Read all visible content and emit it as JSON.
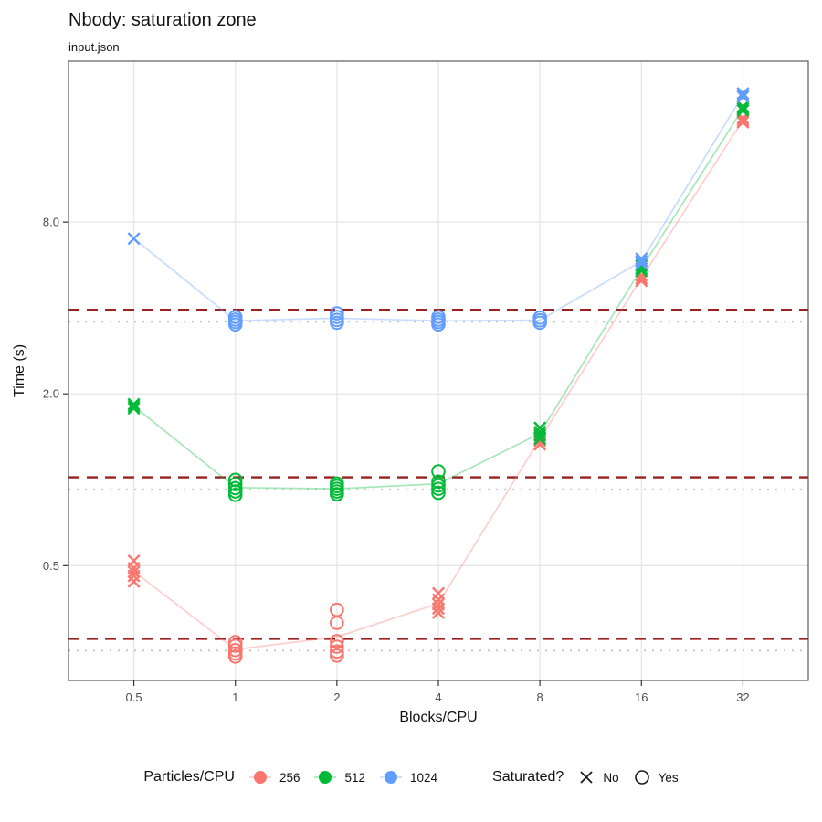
{
  "header": {
    "title": "Nbody: saturation zone",
    "subtitle": "input.json"
  },
  "axes": {
    "x_label": "Blocks/CPU",
    "y_label": "Time (s)"
  },
  "legend": {
    "color": {
      "title": "Particles/CPU",
      "items": [
        {
          "label": "256",
          "color": "#F8766D"
        },
        {
          "label": "512",
          "color": "#00BA38"
        },
        {
          "label": "1024",
          "color": "#619CFF"
        }
      ]
    },
    "shape": {
      "title": "Saturated?",
      "items": [
        {
          "label": "No",
          "shape": "x"
        },
        {
          "label": "Yes",
          "shape": "circle"
        }
      ]
    }
  },
  "chart_data": {
    "type": "scatter",
    "title": "Nbody: saturation zone",
    "subtitle": "input.json",
    "xlabel": "Blocks/CPU",
    "ylabel": "Time (s)",
    "x_scale": "log2",
    "y_scale": "log2",
    "grid": true,
    "legend_position": "bottom",
    "x_range": [
      0.32,
      50
    ],
    "y_range": [
      0.198,
      29.3
    ],
    "x_ticks": [
      {
        "v": 0.5,
        "label": "0.5"
      },
      {
        "v": 1,
        "label": "1"
      },
      {
        "v": 2,
        "label": "2"
      },
      {
        "v": 4,
        "label": "4"
      },
      {
        "v": 8,
        "label": "8"
      },
      {
        "v": 16,
        "label": "16"
      },
      {
        "v": 32,
        "label": "32"
      }
    ],
    "y_ticks": [
      {
        "v": 0.5,
        "label": "0.5"
      },
      {
        "v": 2.0,
        "label": "2.0"
      },
      {
        "v": 8.0,
        "label": "8.0"
      }
    ],
    "marker_shapes": {
      "saturated_true": "open-circle",
      "saturated_false": "x-cross"
    },
    "series": [
      {
        "name": "256",
        "color": "#F8766D",
        "points": [
          {
            "x": 0.5,
            "saturated": false,
            "times": [
              0.52,
              0.49,
              0.475,
              0.46,
              0.44
            ]
          },
          {
            "x": 1,
            "saturated": true,
            "times": [
              0.27,
              0.262,
              0.253,
              0.246,
              0.24
            ]
          },
          {
            "x": 2,
            "saturated": true,
            "times": [
              0.35,
              0.315,
              0.272,
              0.26,
              0.25,
              0.242
            ]
          },
          {
            "x": 4,
            "saturated": false,
            "times": [
              0.4,
              0.38,
              0.366,
              0.354,
              0.342
            ]
          },
          {
            "x": 8,
            "saturated": false,
            "times": [
              1.45,
              1.4,
              1.37,
              1.33
            ]
          },
          {
            "x": 16,
            "saturated": false,
            "times": [
              5.2,
              5.08,
              4.98
            ]
          },
          {
            "x": 32,
            "saturated": false,
            "times": [
              18.5,
              18.2,
              17.9
            ]
          }
        ]
      },
      {
        "name": "512",
        "color": "#00BA38",
        "points": [
          {
            "x": 0.5,
            "saturated": false,
            "times": [
              1.84,
              1.81,
              1.78
            ]
          },
          {
            "x": 1,
            "saturated": true,
            "times": [
              1.0,
              0.965,
              0.935,
              0.91,
              0.885
            ]
          },
          {
            "x": 2,
            "saturated": true,
            "times": [
              0.97,
              0.95,
              0.93,
              0.91,
              0.89
            ]
          },
          {
            "x": 4,
            "saturated": true,
            "times": [
              1.07,
              0.985,
              0.955,
              0.93,
              0.9
            ]
          },
          {
            "x": 8,
            "saturated": false,
            "times": [
              1.52,
              1.47,
              1.43,
              1.39
            ]
          },
          {
            "x": 16,
            "saturated": false,
            "times": [
              5.62,
              5.5,
              5.4
            ]
          },
          {
            "x": 32,
            "saturated": false,
            "times": [
              20.3,
              20.0,
              19.7
            ]
          }
        ]
      },
      {
        "name": "1024",
        "color": "#619CFF",
        "points": [
          {
            "x": 0.5,
            "saturated": false,
            "times": [
              7.0
            ]
          },
          {
            "x": 1,
            "saturated": true,
            "times": [
              3.72,
              3.64,
              3.57,
              3.5
            ]
          },
          {
            "x": 2,
            "saturated": true,
            "times": [
              3.83,
              3.72,
              3.63,
              3.55
            ]
          },
          {
            "x": 4,
            "saturated": true,
            "times": [
              3.72,
              3.64,
              3.57,
              3.5
            ]
          },
          {
            "x": 8,
            "saturated": true,
            "times": [
              3.7,
              3.62,
              3.55
            ]
          },
          {
            "x": 16,
            "saturated": false,
            "times": [
              5.95,
              5.83,
              5.72
            ]
          },
          {
            "x": 32,
            "saturated": false,
            "times": [
              22.6,
              22.3,
              22.0
            ]
          }
        ]
      }
    ],
    "ref_lines": [
      {
        "y": 3.94,
        "style": "dashed",
        "color": "#9A2121"
      },
      {
        "y": 3.58,
        "style": "dotted",
        "color": "#C4C4C4"
      },
      {
        "y": 1.02,
        "style": "dashed",
        "color": "#9A2121"
      },
      {
        "y": 0.925,
        "style": "dotted",
        "color": "#C4C4C4"
      },
      {
        "y": 0.277,
        "style": "dashed",
        "color": "#9A2121"
      },
      {
        "y": 0.252,
        "style": "dotted",
        "color": "#C4C4C4"
      }
    ]
  }
}
